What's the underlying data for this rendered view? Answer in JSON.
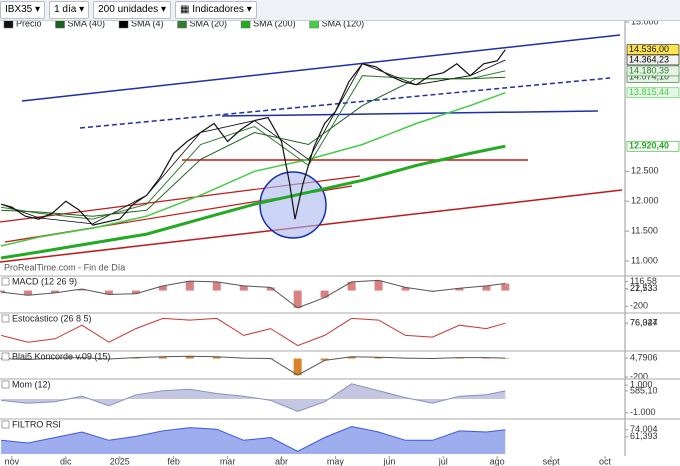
{
  "toolbar": {
    "symbol": "IBX35",
    "period": "1 día",
    "units": "200 unidades",
    "indicators": "Indicadores"
  },
  "chart_data": {
    "type": "line",
    "watermark": "ProRealTime.com - Fin de Día",
    "xlim": [
      -0.22,
      11.37
    ],
    "xticks": [
      {
        "value": 0,
        "label": "nov"
      },
      {
        "value": 1,
        "label": "dic"
      },
      {
        "value": 2,
        "label": "2025"
      },
      {
        "value": 3,
        "label": "feb"
      },
      {
        "value": 4,
        "label": "mar"
      },
      {
        "value": 5,
        "label": "abr"
      },
      {
        "value": 6,
        "label": "may"
      },
      {
        "value": 7,
        "label": "jun"
      },
      {
        "value": 8,
        "label": "jul"
      },
      {
        "value": 9,
        "label": "ago"
      },
      {
        "value": 10,
        "label": "sept"
      },
      {
        "value": 11,
        "label": "oct"
      }
    ],
    "ylim": [
      10966,
      15033
    ],
    "yticks": [
      {
        "value": 15000,
        "label": "15.000"
      },
      {
        "value": 12500,
        "label": "12.500"
      },
      {
        "value": 12000,
        "label": "12.000"
      },
      {
        "value": 11500,
        "label": "11.500"
      },
      {
        "value": 11000,
        "label": "11.000"
      }
    ],
    "series": [
      {
        "name": "Precio",
        "color": "#111111",
        "width": 1.2,
        "last_label": "14.536,00",
        "label_bg": "#ffe34d",
        "x": [
          -0.2,
          0,
          0.25,
          0.5,
          0.75,
          1,
          1.25,
          1.5,
          1.75,
          2,
          2.25,
          2.5,
          2.75,
          3,
          3.25,
          3.5,
          3.75,
          4,
          4.25,
          4.5,
          4.75,
          5,
          5.15,
          5.25,
          5.4,
          5.6,
          5.8,
          6,
          6.25,
          6.5,
          6.75,
          7,
          7.25,
          7.5,
          7.75,
          8,
          8.25,
          8.5,
          8.75,
          9,
          9.15
        ],
        "values": [
          11950,
          11900,
          11750,
          11700,
          11800,
          12000,
          11850,
          11600,
          11650,
          11700,
          11950,
          12100,
          12400,
          12800,
          13000,
          13150,
          13300,
          13000,
          13200,
          13350,
          13400,
          13000,
          12300,
          11700,
          12300,
          12900,
          13300,
          13500,
          14000,
          14300,
          14250,
          14100,
          14000,
          13950,
          14100,
          14150,
          14300,
          14100,
          14300,
          14350,
          14536
        ]
      },
      {
        "name": "SMA (40)",
        "color": "#1d5e1d",
        "width": 1,
        "last_label": "14.074,10",
        "label_bg": "#e6f2e6",
        "x": [
          -0.2,
          0.5,
          1.5,
          2.5,
          3.5,
          4.5,
          5.5,
          6.5,
          7.5,
          8.5,
          9.15
        ],
        "values": [
          11850,
          11820,
          11750,
          11850,
          12700,
          13150,
          12950,
          13600,
          14050,
          14050,
          14074.1
        ]
      },
      {
        "name": "SMA (4)",
        "color": "#000000",
        "width": 0.8,
        "last_label": "14.364,23",
        "label_bg": "#f2f2f2",
        "x": [
          -0.2,
          0.5,
          1.5,
          2.5,
          3.5,
          4.5,
          5.5,
          6.5,
          7.5,
          8.5,
          9.15
        ],
        "values": [
          11950,
          11720,
          11620,
          12100,
          13150,
          13350,
          12700,
          14300,
          13950,
          14100,
          14364.23
        ]
      },
      {
        "name": "SMA (20)",
        "color": "#2f7d2f",
        "width": 1,
        "last_label": "14.180,39",
        "label_bg": "#e6f2e6",
        "x": [
          -0.2,
          0.5,
          1.5,
          2.5,
          3.5,
          4.5,
          5.5,
          6.5,
          7.5,
          8.5,
          9.15
        ],
        "values": [
          11900,
          11800,
          11700,
          11950,
          12950,
          13250,
          12600,
          14100,
          14050,
          14050,
          14180.39
        ]
      },
      {
        "name": "SMA (200)",
        "color": "#22aa22",
        "width": 3,
        "last_label": "12.920,40",
        "label_bg": "#ffffff",
        "x": [
          -0.2,
          0.5,
          1.5,
          2.5,
          3.5,
          4.5,
          5.5,
          6.5,
          7.5,
          8.5,
          9.15
        ],
        "values": [
          11050,
          11150,
          11300,
          11450,
          11700,
          11950,
          12150,
          12350,
          12600,
          12800,
          12920.4
        ]
      },
      {
        "name": "SMA (120)",
        "color": "#44cc44",
        "width": 1.5,
        "last_label": "13.815,44",
        "label_bg": "#e6f7e6",
        "x": [
          -0.2,
          0.5,
          1.5,
          2.5,
          3.5,
          4.5,
          5.5,
          6.5,
          7.5,
          8.5,
          9.15
        ],
        "values": [
          11250,
          11400,
          11550,
          11750,
          12100,
          12500,
          12700,
          12950,
          13300,
          13600,
          13815.44
        ]
      }
    ],
    "indicator_x": [
      -0.2,
      0.3,
      0.8,
      1.3,
      1.8,
      2.3,
      2.8,
      3.3,
      3.8,
      4.3,
      4.8,
      5.3,
      5.8,
      6.3,
      6.8,
      7.3,
      7.8,
      8.3,
      8.8,
      9.15
    ],
    "panels": [
      {
        "title": "MACD (12 26 9)",
        "type": "bars",
        "color": "#d98080",
        "ylim": [
          -260,
          160
        ],
        "labels": [
          {
            "value": 116.58,
            "label": "116,58"
          },
          {
            "value": 22.533,
            "label": "22,533"
          },
          {
            "value": 21.73,
            "label": "21,73"
          },
          -200
        ],
        "values": [
          -20,
          -60,
          -30,
          20,
          -50,
          -40,
          60,
          120,
          110,
          60,
          40,
          -220,
          -90,
          110,
          130,
          40,
          -10,
          30,
          60,
          90
        ]
      },
      {
        "title": "Estocástico (26 8 5)",
        "type": "line",
        "color": "#cc3333",
        "ylim": [
          0,
          100
        ],
        "labels": [
          {
            "value": 76.344,
            "label": "76,344"
          },
          {
            "value": 76.027,
            "label": "76,027"
          }
        ],
        "values": [
          40,
          20,
          30,
          70,
          20,
          60,
          90,
          85,
          90,
          40,
          60,
          10,
          40,
          90,
          85,
          40,
          35,
          70,
          60,
          76
        ]
      },
      {
        "title": "Blai5 Koncorde v.09 (15)",
        "type": "bars",
        "color": "#d9822b",
        "ylim": [
          -200,
          60
        ],
        "labels": [
          {
            "value": 4.7906,
            "label": "4,7906"
          },
          -200
        ],
        "values": [
          0,
          -10,
          5,
          10,
          -5,
          10,
          20,
          25,
          20,
          5,
          0,
          -180,
          -20,
          20,
          15,
          5,
          0,
          10,
          10,
          5
        ]
      },
      {
        "title": "Mom (12)",
        "type": "area",
        "color": "#8a8fc4",
        "ylim": [
          -1300,
          1300
        ],
        "labels": [
          {
            "value": 1000,
            "label": "1.000"
          },
          {
            "value": 585.1,
            "label": "585,10"
          },
          {
            "value": -1000,
            "label": "-1.000"
          }
        ],
        "values": [
          -100,
          -300,
          -200,
          200,
          -500,
          300,
          600,
          700,
          400,
          200,
          -100,
          -900,
          -200,
          1100,
          600,
          100,
          -300,
          200,
          300,
          585
        ]
      },
      {
        "title": "FILTRO RSI",
        "type": "area",
        "color": "#3b5bdb",
        "ylim": [
          30,
          90
        ],
        "labels": [
          {
            "value": 74.004,
            "label": "74,004"
          },
          {
            "value": 61.393,
            "label": "61,393"
          }
        ],
        "values": [
          55,
          50,
          60,
          70,
          55,
          62,
          72,
          78,
          75,
          55,
          60,
          35,
          60,
          80,
          70,
          55,
          55,
          72,
          70,
          74
        ]
      }
    ]
  }
}
